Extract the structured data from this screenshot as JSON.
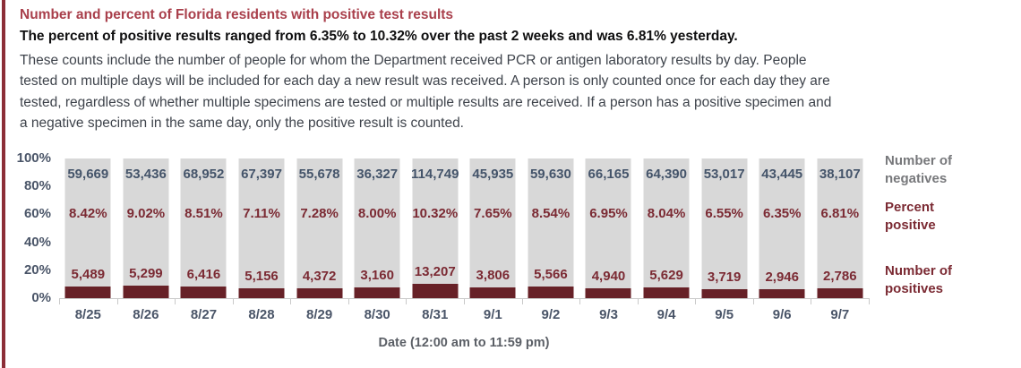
{
  "page": {
    "accent_border_color": "#8c2e37",
    "background_color": "#ffffff"
  },
  "header": {
    "title": "Number and percent of Florida residents with positive test results",
    "subtitle": "The percent of positive results ranged from 6.35% to 10.32% over the past 2 weeks and was 6.81% yesterday.",
    "paragraph_lines": [
      "These counts include the number of people for whom the Department received PCR or antigen laboratory results by day. People",
      "tested on multiple days will be included for each day a new result was received. A person is only counted once for each day they are",
      "tested, regardless of whether multiple specimens are tested or multiple results are received. If a person has a positive specimen and",
      "a negative specimen in the same day, only the positive result is counted."
    ]
  },
  "chart_data": {
    "type": "bar",
    "stacked": true,
    "title": "",
    "xlabel": "Date (12:00 am to 11:59 pm)",
    "ylabel": "",
    "ylim": [
      0,
      100
    ],
    "y_ticks": [
      "100%",
      "80%",
      "60%",
      "40%",
      "20%",
      "0%"
    ],
    "grid": false,
    "legend_position": "right",
    "categories": [
      "8/25",
      "8/26",
      "8/27",
      "8/28",
      "8/29",
      "8/30",
      "8/31",
      "9/1",
      "9/2",
      "9/3",
      "9/4",
      "9/5",
      "9/6",
      "9/7"
    ],
    "series": [
      {
        "name": "Number of negatives",
        "bar_color": "#d8d8d8",
        "text_color": "#44546a",
        "values": [
          59669,
          53436,
          68952,
          67397,
          55678,
          36327,
          114749,
          45935,
          59630,
          66165,
          64390,
          53017,
          43445,
          38107
        ],
        "labels": [
          "59,669",
          "53,436",
          "68,952",
          "67,397",
          "55,678",
          "36,327",
          "114,749",
          "45,935",
          "59,630",
          "66,165",
          "64,390",
          "53,017",
          "43,445",
          "38,107"
        ]
      },
      {
        "name": "Percent positive",
        "text_color": "#7b2a33",
        "values": [
          8.42,
          9.02,
          8.51,
          7.11,
          7.28,
          8.0,
          10.32,
          7.65,
          8.54,
          6.95,
          8.04,
          6.55,
          6.35,
          6.81
        ],
        "labels": [
          "8.42%",
          "9.02%",
          "8.51%",
          "7.11%",
          "7.28%",
          "8.00%",
          "10.32%",
          "7.65%",
          "8.54%",
          "6.95%",
          "8.04%",
          "6.55%",
          "6.35%",
          "6.81%"
        ]
      },
      {
        "name": "Number of positives",
        "bar_color": "#672127",
        "text_color": "#7b2a33",
        "values": [
          5489,
          5299,
          6416,
          5156,
          4372,
          3160,
          13207,
          3806,
          5566,
          4940,
          5629,
          3719,
          2946,
          2786
        ],
        "labels": [
          "5,489",
          "5,299",
          "6,416",
          "5,156",
          "4,372",
          "3,160",
          "13,207",
          "3,806",
          "5,566",
          "4,940",
          "5,629",
          "3,719",
          "2,946",
          "2,786"
        ]
      }
    ],
    "legend": [
      {
        "label": "Number of negatives",
        "color": "#77787b"
      },
      {
        "label": "Percent positive",
        "color": "#7b2a33"
      },
      {
        "label": "Number of positives",
        "color": "#7b2a33"
      }
    ]
  }
}
